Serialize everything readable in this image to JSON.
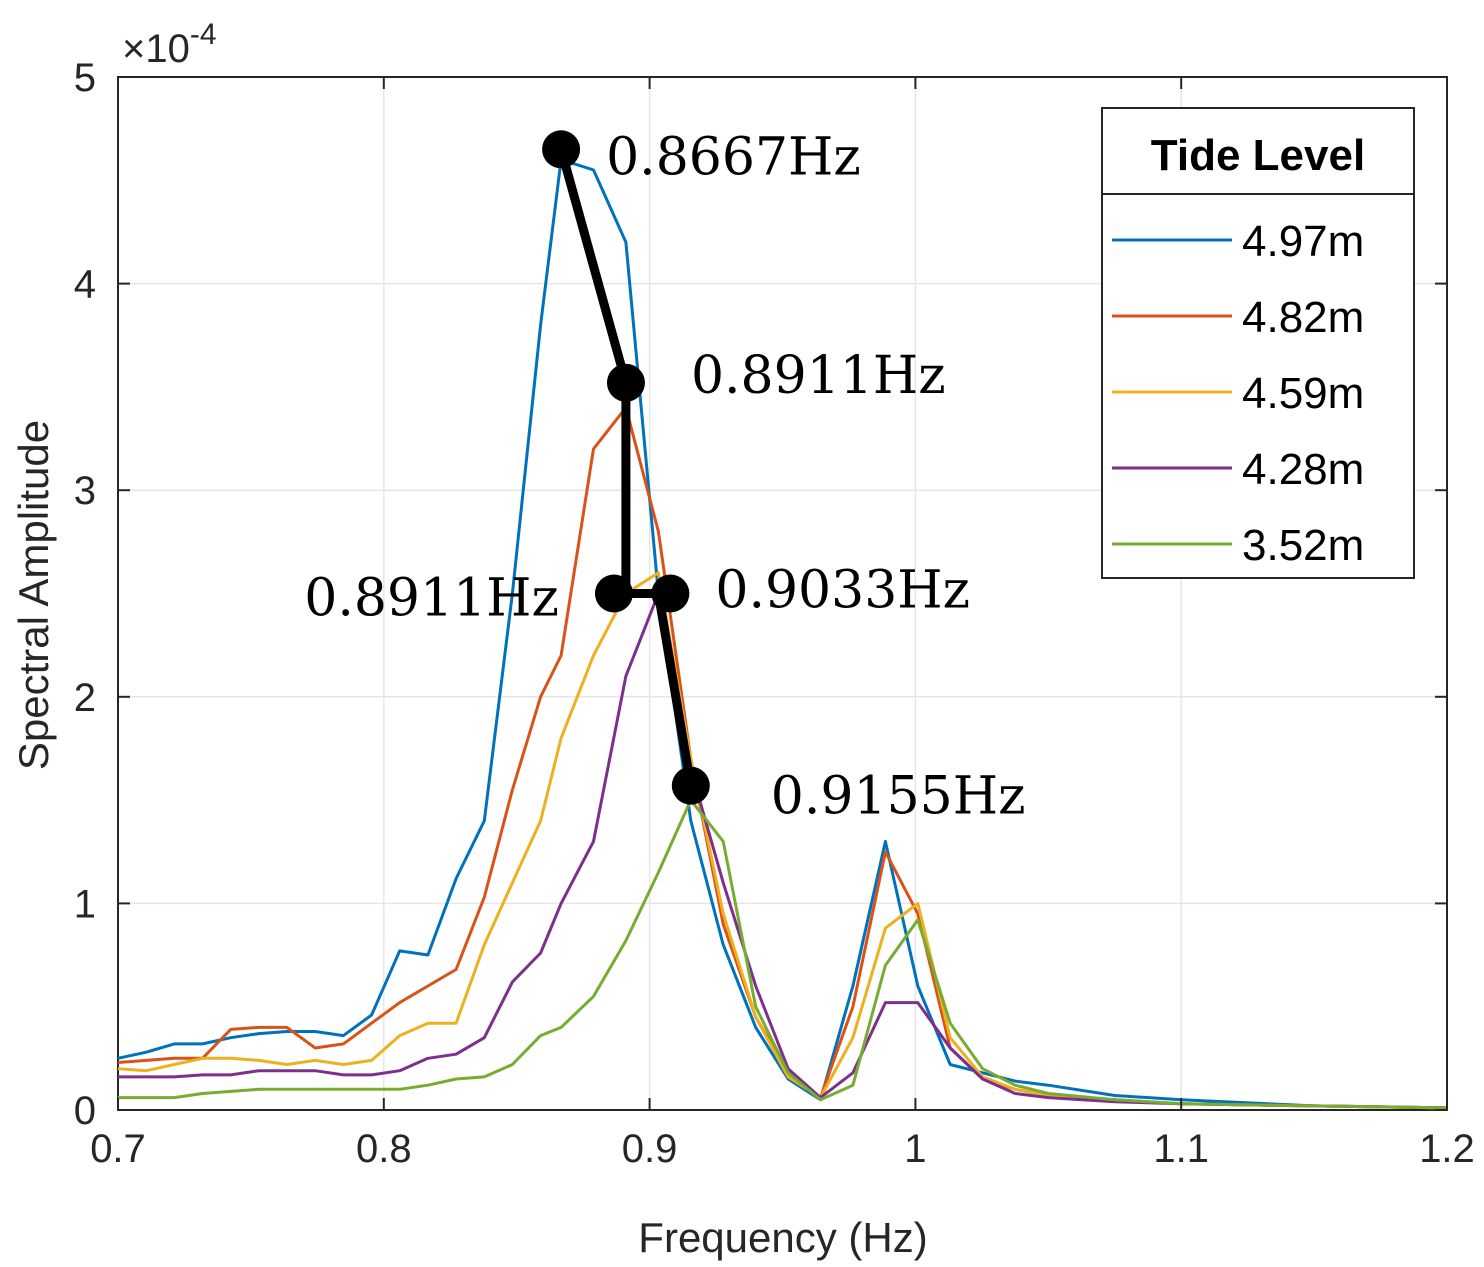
{
  "chart_data": {
    "type": "line",
    "xlabel": "Frequency (Hz)",
    "ylabel": "Spectral Amplitude",
    "y_multiplier": "×10",
    "y_exponent": "-4",
    "xlim": [
      0.7,
      1.2
    ],
    "ylim": [
      0,
      5
    ],
    "xticks": [
      "0.7",
      "0.8",
      "0.9",
      "1",
      "1.1",
      "1.2"
    ],
    "yticks": [
      "0",
      "1",
      "2",
      "3",
      "4",
      "5"
    ],
    "grid": true,
    "legend": {
      "title": "Tide Level",
      "placement": "top-right"
    },
    "series": [
      {
        "name": "4.97m",
        "color": "#0072BD",
        "x": [
          0.7,
          0.7106,
          0.7212,
          0.7318,
          0.7424,
          0.753,
          0.7636,
          0.7742,
          0.7848,
          0.7954,
          0.806,
          0.8166,
          0.8272,
          0.8378,
          0.8484,
          0.859,
          0.8667,
          0.8789,
          0.8911,
          0.9033,
          0.9155,
          0.9277,
          0.9399,
          0.9521,
          0.9643,
          0.9765,
          0.9887,
          1.0009,
          1.0131,
          1.0253,
          1.0375,
          1.05,
          1.075,
          1.1,
          1.15,
          1.2
        ],
        "y": [
          0.25,
          0.28,
          0.32,
          0.32,
          0.35,
          0.37,
          0.38,
          0.38,
          0.36,
          0.46,
          0.77,
          0.75,
          1.12,
          1.4,
          2.5,
          3.8,
          4.6,
          4.55,
          4.2,
          2.5,
          1.4,
          0.8,
          0.4,
          0.15,
          0.05,
          0.6,
          1.3,
          0.6,
          0.22,
          0.18,
          0.14,
          0.12,
          0.07,
          0.05,
          0.02,
          0.01
        ]
      },
      {
        "name": "4.82m",
        "color": "#D95319",
        "x": [
          0.7,
          0.7106,
          0.7212,
          0.7318,
          0.7424,
          0.753,
          0.7636,
          0.7742,
          0.7848,
          0.7954,
          0.806,
          0.8166,
          0.8272,
          0.8378,
          0.8484,
          0.859,
          0.8667,
          0.8789,
          0.8911,
          0.9033,
          0.9155,
          0.9277,
          0.9399,
          0.9521,
          0.9643,
          0.9765,
          0.9887,
          1.0009,
          1.0131,
          1.0253,
          1.0375,
          1.05,
          1.075,
          1.1,
          1.15,
          1.2
        ],
        "y": [
          0.23,
          0.24,
          0.25,
          0.25,
          0.39,
          0.4,
          0.4,
          0.3,
          0.32,
          0.42,
          0.52,
          0.6,
          0.68,
          1.03,
          1.55,
          2.0,
          2.2,
          3.2,
          3.4,
          2.8,
          1.7,
          0.9,
          0.45,
          0.18,
          0.06,
          0.5,
          1.25,
          0.95,
          0.3,
          0.15,
          0.1,
          0.07,
          0.05,
          0.03,
          0.02,
          0.01
        ]
      },
      {
        "name": "4.59m",
        "color": "#EDB120",
        "x": [
          0.7,
          0.7106,
          0.7212,
          0.7318,
          0.7424,
          0.753,
          0.7636,
          0.7742,
          0.7848,
          0.7954,
          0.806,
          0.8166,
          0.8272,
          0.8378,
          0.8484,
          0.859,
          0.8667,
          0.8789,
          0.8911,
          0.9033,
          0.9155,
          0.9277,
          0.9399,
          0.9521,
          0.9643,
          0.9765,
          0.9887,
          1.0009,
          1.0131,
          1.0253,
          1.0375,
          1.05,
          1.075,
          1.1,
          1.15,
          1.2
        ],
        "y": [
          0.2,
          0.19,
          0.22,
          0.25,
          0.25,
          0.24,
          0.22,
          0.24,
          0.22,
          0.24,
          0.36,
          0.42,
          0.42,
          0.8,
          1.1,
          1.4,
          1.8,
          2.2,
          2.5,
          2.6,
          1.7,
          0.95,
          0.45,
          0.16,
          0.06,
          0.35,
          0.88,
          1.0,
          0.35,
          0.16,
          0.1,
          0.07,
          0.05,
          0.03,
          0.02,
          0.01
        ]
      },
      {
        "name": "4.28m",
        "color": "#7E2F8E",
        "x": [
          0.7,
          0.7106,
          0.7212,
          0.7318,
          0.7424,
          0.753,
          0.7636,
          0.7742,
          0.7848,
          0.7954,
          0.806,
          0.8166,
          0.8272,
          0.8378,
          0.8484,
          0.859,
          0.8667,
          0.8789,
          0.8911,
          0.9033,
          0.9155,
          0.9277,
          0.9399,
          0.9521,
          0.9643,
          0.9765,
          0.9887,
          1.0009,
          1.0131,
          1.0253,
          1.0375,
          1.05,
          1.075,
          1.1,
          1.15,
          1.2
        ],
        "y": [
          0.16,
          0.16,
          0.16,
          0.17,
          0.17,
          0.19,
          0.19,
          0.19,
          0.17,
          0.17,
          0.19,
          0.25,
          0.27,
          0.35,
          0.62,
          0.76,
          1.0,
          1.3,
          2.1,
          2.5,
          1.65,
          1.1,
          0.6,
          0.2,
          0.06,
          0.18,
          0.52,
          0.52,
          0.3,
          0.15,
          0.08,
          0.06,
          0.04,
          0.03,
          0.02,
          0.01
        ]
      },
      {
        "name": "3.52m",
        "color": "#77AC30",
        "x": [
          0.7,
          0.7106,
          0.7212,
          0.7318,
          0.7424,
          0.753,
          0.7636,
          0.7742,
          0.7848,
          0.7954,
          0.806,
          0.8166,
          0.8272,
          0.8378,
          0.8484,
          0.859,
          0.8667,
          0.8789,
          0.8911,
          0.9033,
          0.9155,
          0.9277,
          0.9399,
          0.9521,
          0.9643,
          0.9765,
          0.9887,
          1.0009,
          1.0131,
          1.0253,
          1.0375,
          1.05,
          1.075,
          1.1,
          1.15,
          1.2
        ],
        "y": [
          0.06,
          0.06,
          0.06,
          0.08,
          0.09,
          0.1,
          0.1,
          0.1,
          0.1,
          0.1,
          0.1,
          0.12,
          0.15,
          0.16,
          0.22,
          0.36,
          0.4,
          0.55,
          0.82,
          1.15,
          1.5,
          1.3,
          0.5,
          0.18,
          0.05,
          0.12,
          0.7,
          0.92,
          0.42,
          0.2,
          0.12,
          0.08,
          0.05,
          0.03,
          0.02,
          0.01
        ]
      }
    ],
    "peak_track": {
      "color": "#000000",
      "points": [
        {
          "x": 0.8667,
          "y": 4.65,
          "label": "0.8667Hz"
        },
        {
          "x": 0.8911,
          "y": 3.52,
          "label": "0.8911Hz"
        },
        {
          "x": 0.8911,
          "y": 2.5,
          "label": "0.8911Hz"
        },
        {
          "x": 0.9033,
          "y": 2.5,
          "label": "0.9033Hz"
        },
        {
          "x": 0.9155,
          "y": 1.57,
          "label": "0.9155Hz"
        }
      ]
    }
  }
}
